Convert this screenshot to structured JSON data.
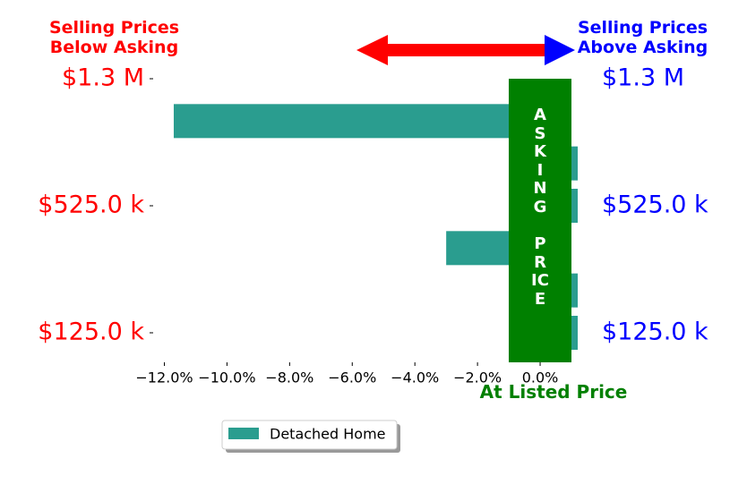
{
  "chart_data": {
    "type": "barh",
    "categories": [
      "$1.3 M",
      null,
      null,
      "$525.0 k",
      null,
      null,
      "$125.0 k"
    ],
    "series": [
      {
        "name": "Detached Home",
        "color": "#2a9d8f",
        "values": [
          0,
          -11.7,
          1.2,
          1.2,
          -3.0,
          1.2,
          1.2
        ]
      }
    ],
    "xlim": [
      -12.3,
      1.2
    ],
    "xticks": [
      {
        "value": -12,
        "label": "−12.0%"
      },
      {
        "value": -10,
        "label": "−10.0%"
      },
      {
        "value": -8,
        "label": "−8.0%"
      },
      {
        "value": -6,
        "label": "−6.0%"
      },
      {
        "value": -4,
        "label": "−4.0%"
      },
      {
        "value": -2,
        "label": "−2.0%"
      },
      {
        "value": 0,
        "label": "0.0%"
      }
    ],
    "annotations": {
      "below": "Selling Prices\nBelow Asking",
      "above": "Selling Prices\nAbove Asking",
      "listed": "At Listed Price",
      "asking": [
        "ASKING",
        "PRICE"
      ]
    },
    "grid": false
  }
}
